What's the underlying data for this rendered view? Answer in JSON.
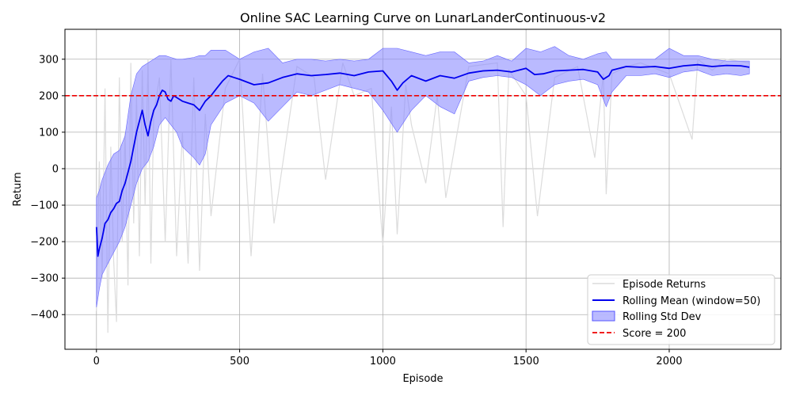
{
  "chart_data": {
    "type": "line",
    "title": "Online SAC Learning Curve on LunarLanderContinuous-v2",
    "xlabel": "Episode",
    "ylabel": "Return",
    "xlim": [
      -110,
      2390
    ],
    "ylim": [
      -495,
      382
    ],
    "xticks": [
      0,
      500,
      1000,
      1500,
      2000
    ],
    "yticks": [
      -400,
      -300,
      -200,
      -100,
      0,
      100,
      200,
      300
    ],
    "grid": true,
    "legend_position": "lower-right",
    "legend": [
      "Episode Returns",
      "Rolling Mean (window=50)",
      "Rolling Std Dev",
      "Score = 200"
    ],
    "colors": {
      "raw": "#dcdcdc",
      "mean": "#0000ee",
      "band": "#8c8cff",
      "threshold": "#ee0000"
    },
    "threshold": {
      "label": "Score = 200",
      "value": 200
    },
    "series": [
      {
        "name": "Rolling Mean (window=50)",
        "x": [
          0,
          5,
          10,
          20,
          30,
          40,
          50,
          60,
          70,
          80,
          90,
          100,
          110,
          120,
          130,
          140,
          150,
          160,
          170,
          180,
          190,
          200,
          210,
          220,
          230,
          240,
          250,
          260,
          270,
          280,
          290,
          300,
          320,
          340,
          360,
          380,
          400,
          420,
          440,
          460,
          480,
          500,
          550,
          600,
          650,
          700,
          750,
          800,
          850,
          900,
          950,
          1000,
          1030,
          1050,
          1070,
          1100,
          1150,
          1200,
          1250,
          1300,
          1350,
          1400,
          1450,
          1500,
          1530,
          1560,
          1600,
          1650,
          1700,
          1750,
          1770,
          1790,
          1800,
          1850,
          1900,
          1950,
          2000,
          2050,
          2100,
          2150,
          2200,
          2250,
          2280
        ],
        "values": [
          -160,
          -240,
          -220,
          -190,
          -150,
          -140,
          -120,
          -110,
          -95,
          -90,
          -60,
          -40,
          -10,
          20,
          60,
          100,
          130,
          160,
          120,
          90,
          130,
          160,
          175,
          200,
          215,
          210,
          190,
          185,
          200,
          195,
          190,
          185,
          180,
          175,
          160,
          185,
          200,
          220,
          240,
          255,
          250,
          245,
          230,
          235,
          250,
          260,
          255,
          258,
          262,
          255,
          265,
          268,
          240,
          215,
          235,
          255,
          240,
          255,
          248,
          262,
          268,
          270,
          265,
          275,
          258,
          260,
          268,
          270,
          272,
          265,
          245,
          255,
          270,
          280,
          278,
          280,
          275,
          282,
          285,
          280,
          283,
          282,
          278
        ]
      },
      {
        "name": "Rolling Std Dev",
        "x": [
          0,
          10,
          20,
          40,
          60,
          80,
          100,
          120,
          140,
          160,
          180,
          200,
          220,
          240,
          260,
          280,
          300,
          340,
          360,
          380,
          400,
          450,
          500,
          550,
          600,
          650,
          700,
          750,
          800,
          850,
          900,
          950,
          1000,
          1050,
          1100,
          1150,
          1200,
          1250,
          1300,
          1350,
          1400,
          1450,
          1500,
          1550,
          1600,
          1650,
          1700,
          1750,
          1780,
          1800,
          1850,
          1900,
          1950,
          2000,
          2050,
          2100,
          2150,
          2200,
          2250,
          2280
        ],
        "lower": [
          -380,
          -330,
          -290,
          -260,
          -230,
          -200,
          -160,
          -100,
          -40,
          0,
          20,
          60,
          120,
          140,
          120,
          100,
          60,
          30,
          10,
          40,
          120,
          180,
          200,
          180,
          130,
          170,
          210,
          200,
          215,
          230,
          220,
          210,
          160,
          100,
          160,
          200,
          170,
          150,
          240,
          250,
          255,
          250,
          230,
          200,
          230,
          240,
          245,
          230,
          170,
          210,
          255,
          255,
          260,
          250,
          265,
          270,
          255,
          260,
          255,
          260
        ],
        "upper": [
          -80,
          -60,
          -30,
          10,
          40,
          50,
          90,
          200,
          260,
          280,
          290,
          300,
          310,
          310,
          305,
          300,
          300,
          305,
          310,
          310,
          325,
          325,
          300,
          320,
          330,
          290,
          300,
          300,
          295,
          300,
          295,
          300,
          330,
          330,
          320,
          310,
          320,
          320,
          290,
          295,
          310,
          295,
          330,
          320,
          335,
          310,
          300,
          315,
          320,
          300,
          300,
          300,
          300,
          330,
          310,
          310,
          300,
          295,
          295,
          295
        ]
      },
      {
        "name": "Episode Returns",
        "x": [
          0,
          10,
          20,
          30,
          40,
          50,
          60,
          70,
          80,
          90,
          100,
          110,
          120,
          130,
          140,
          150,
          160,
          170,
          180,
          190,
          200,
          220,
          240,
          260,
          280,
          300,
          320,
          340,
          360,
          380,
          400,
          450,
          500,
          540,
          580,
          620,
          700,
          760,
          800,
          860,
          900,
          960,
          1000,
          1030,
          1050,
          1080,
          1100,
          1150,
          1190,
          1220,
          1300,
          1400,
          1420,
          1440,
          1500,
          1540,
          1600,
          1680,
          1740,
          1770,
          1780,
          1800,
          1850,
          1900,
          2000,
          2080,
          2100,
          2150,
          2200,
          2280
        ],
        "values": [
          -390,
          20,
          -300,
          220,
          -450,
          60,
          -250,
          -420,
          250,
          -200,
          100,
          -320,
          290,
          -150,
          200,
          -240,
          270,
          -100,
          300,
          -260,
          150,
          250,
          -200,
          300,
          -240,
          100,
          -260,
          250,
          -280,
          150,
          -130,
          220,
          300,
          -240,
          260,
          -150,
          280,
          250,
          -30,
          290,
          200,
          220,
          -210,
          170,
          -180,
          230,
          120,
          -40,
          200,
          -80,
          280,
          290,
          -160,
          270,
          200,
          -130,
          250,
          280,
          30,
          260,
          -70,
          260,
          280,
          290,
          260,
          80,
          300,
          270,
          300,
          290
        ]
      },
      {
        "name": "Score = 200",
        "x": [
          -110,
          2390
        ],
        "values": [
          200,
          200
        ]
      }
    ]
  }
}
